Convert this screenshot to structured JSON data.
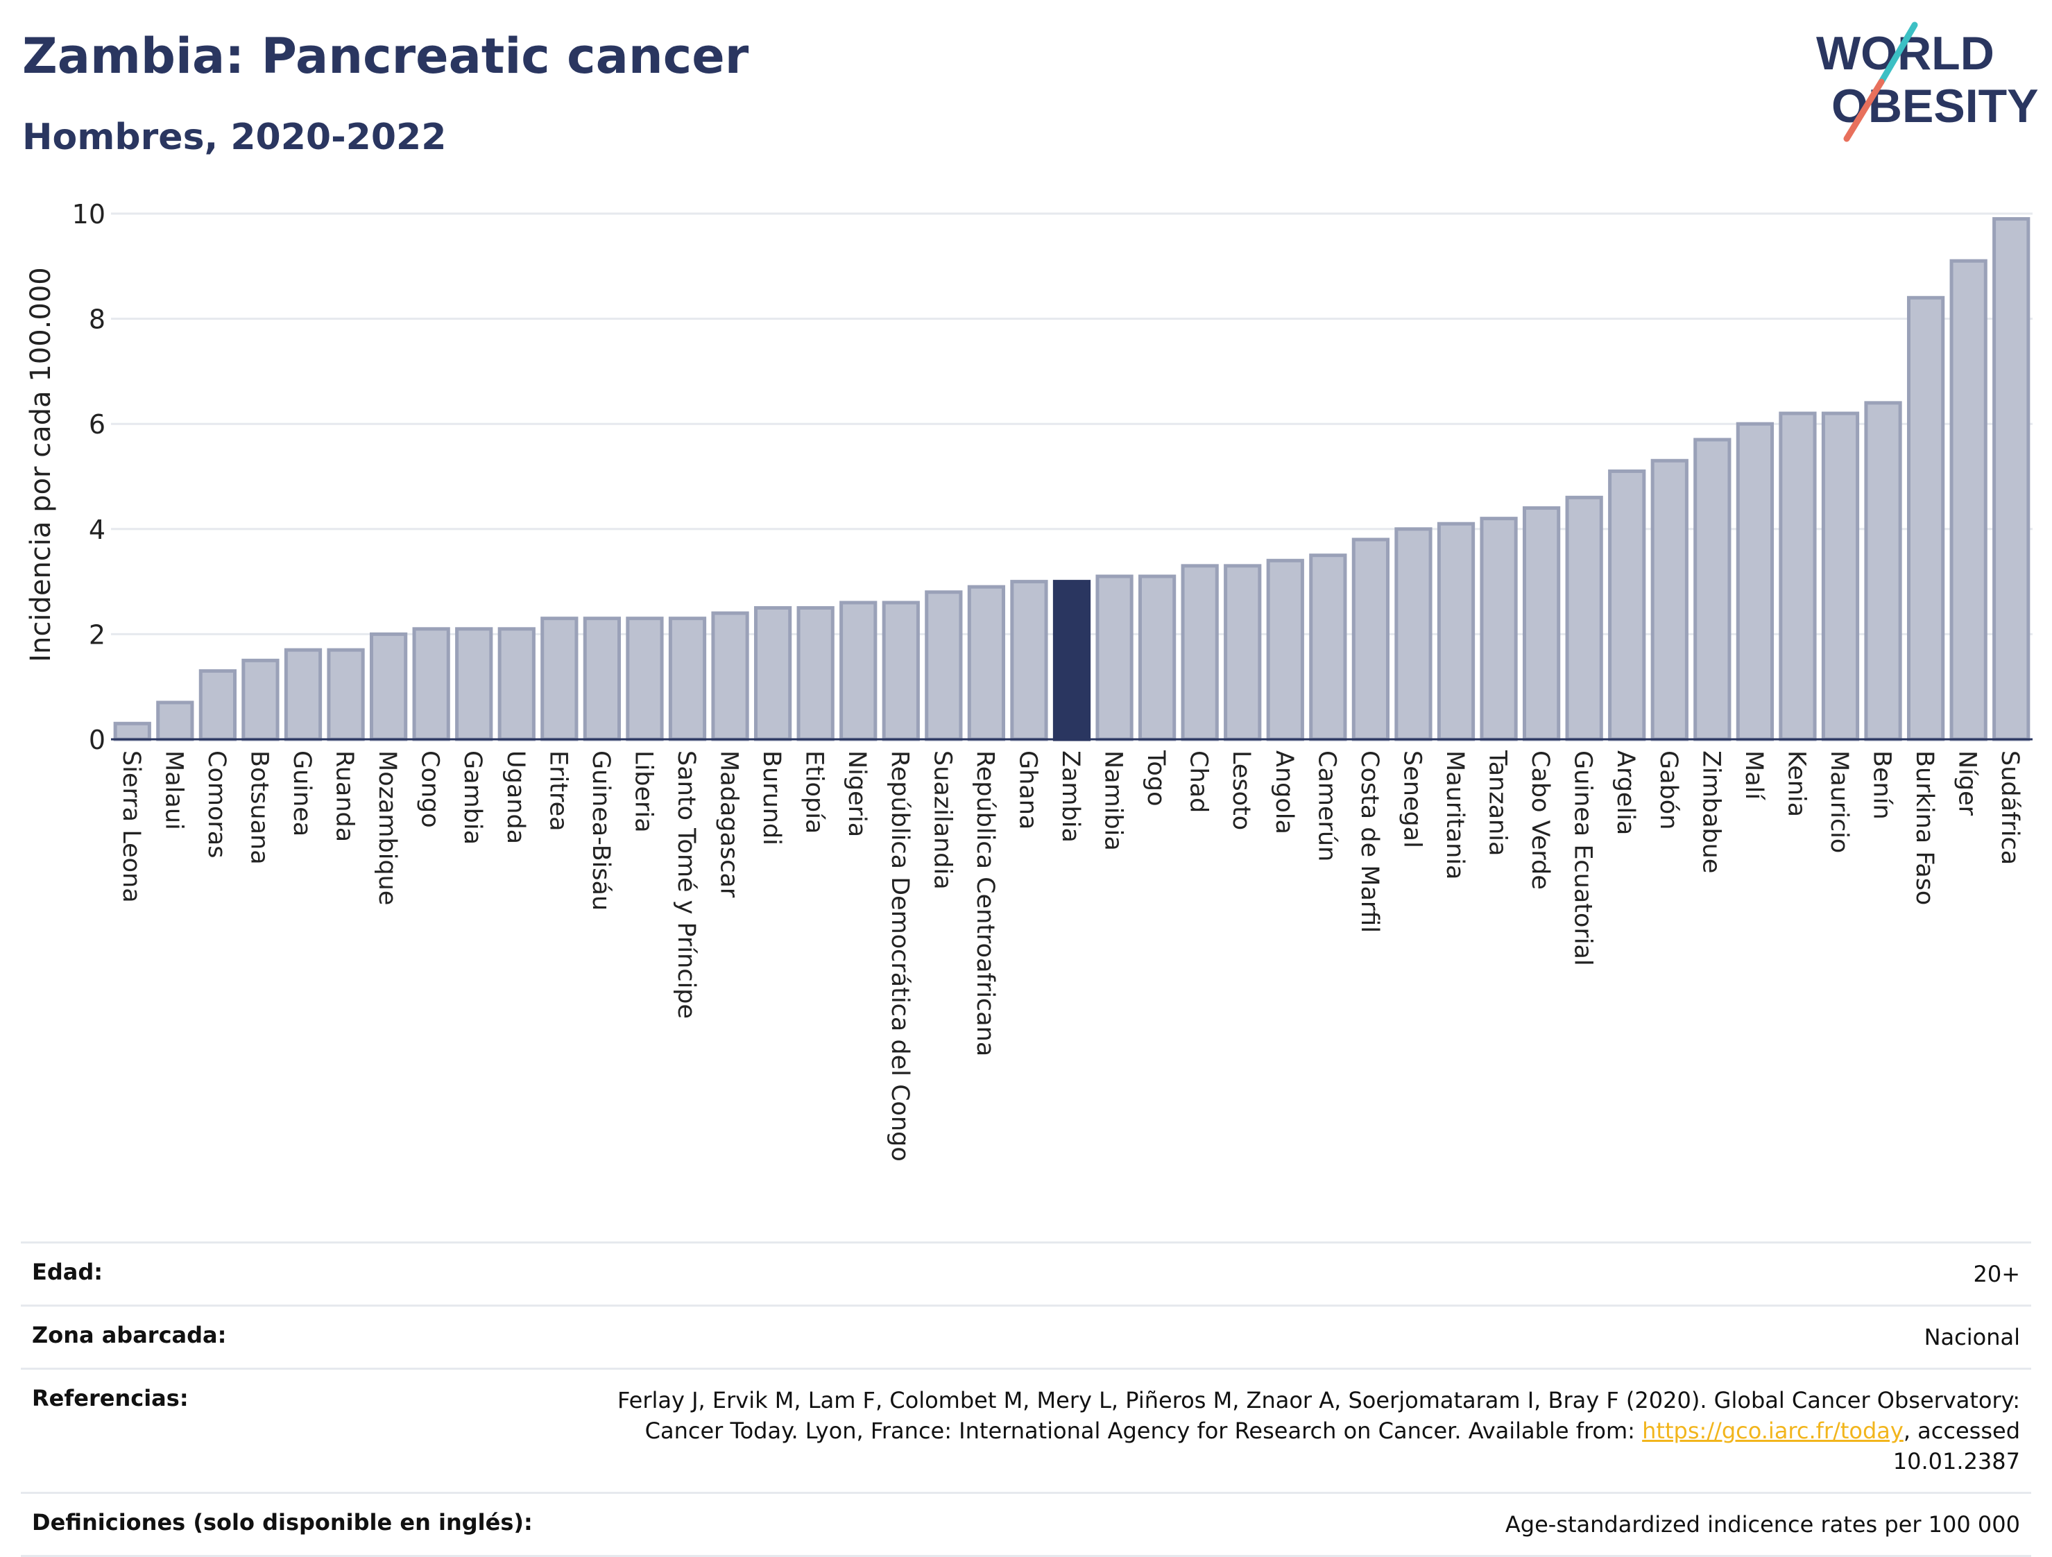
{
  "header": {
    "title": "Zambia: Pancreatic cancer",
    "subtitle": "Hombres, 2020-2022"
  },
  "logo": {
    "line1": "WORLD",
    "line2": "OBESITY",
    "accent_colors": [
      "#3cc0c4",
      "#e8705c"
    ]
  },
  "colors": {
    "bar": "#bcc1d0",
    "bar_border": "#9aa1b8",
    "highlight": "#2a3660",
    "grid": "#e6e9ee",
    "text": "#2a3660"
  },
  "chart_data": {
    "type": "bar",
    "ylabel": "Incidencia por cada 100.000",
    "ylim": [
      0,
      10
    ],
    "yticks": [
      0,
      2,
      4,
      6,
      8,
      10
    ],
    "highlight": "Zambia",
    "categories": [
      "Sierra Leona",
      "Malaui",
      "Comoras",
      "Botsuana",
      "Guinea",
      "Ruanda",
      "Mozambique",
      "Congo",
      "Gambia",
      "Uganda",
      "Eritrea",
      "Guinea-Bisáu",
      "Liberia",
      "Santo Tomé y Príncipe",
      "Madagascar",
      "Burundi",
      "Etiopía",
      "Nigeria",
      "República Democrática del Congo",
      "Suazilandia",
      "República Centroafricana",
      "Ghana",
      "Zambia",
      "Namibia",
      "Togo",
      "Chad",
      "Lesoto",
      "Angola",
      "Camerún",
      "Costa de Marfil",
      "Senegal",
      "Mauritania",
      "Tanzania",
      "Cabo Verde",
      "Guinea Ecuatorial",
      "Argelia",
      "Gabón",
      "Zimbabue",
      "Malí",
      "Kenia",
      "Mauricio",
      "Benín",
      "Burkina Faso",
      "Níger",
      "Sudáfrica"
    ],
    "values": [
      0.3,
      0.7,
      1.3,
      1.5,
      1.7,
      1.7,
      2.0,
      2.1,
      2.1,
      2.1,
      2.3,
      2.3,
      2.3,
      2.3,
      2.4,
      2.5,
      2.5,
      2.6,
      2.6,
      2.8,
      2.9,
      3.0,
      3.0,
      3.1,
      3.1,
      3.3,
      3.3,
      3.4,
      3.5,
      3.8,
      4.0,
      4.1,
      4.2,
      4.4,
      4.6,
      5.1,
      5.3,
      5.7,
      6.0,
      6.2,
      6.2,
      6.4,
      8.4,
      9.1,
      9.9
    ]
  },
  "meta": {
    "age_label": "Edad:",
    "age_value": "20+",
    "zone_label": "Zona abarcada:",
    "zone_value": "Nacional",
    "ref_label": "Referencias:",
    "ref_text": "Ferlay J, Ervik M, Lam F, Colombet M, Mery L, Piñeros M, Znaor A, Soerjomataram I, Bray F (2020). Global Cancer Observatory: Cancer Today. Lyon, France: International Agency for Research on Cancer. Available from: ",
    "ref_link": "https://gco.iarc.fr/today",
    "ref_suffix": ", accessed 10.01.2387",
    "def_label": "Definiciones (solo disponible en inglés):",
    "def_value": "Age-standardized indicence rates per 100 000"
  }
}
